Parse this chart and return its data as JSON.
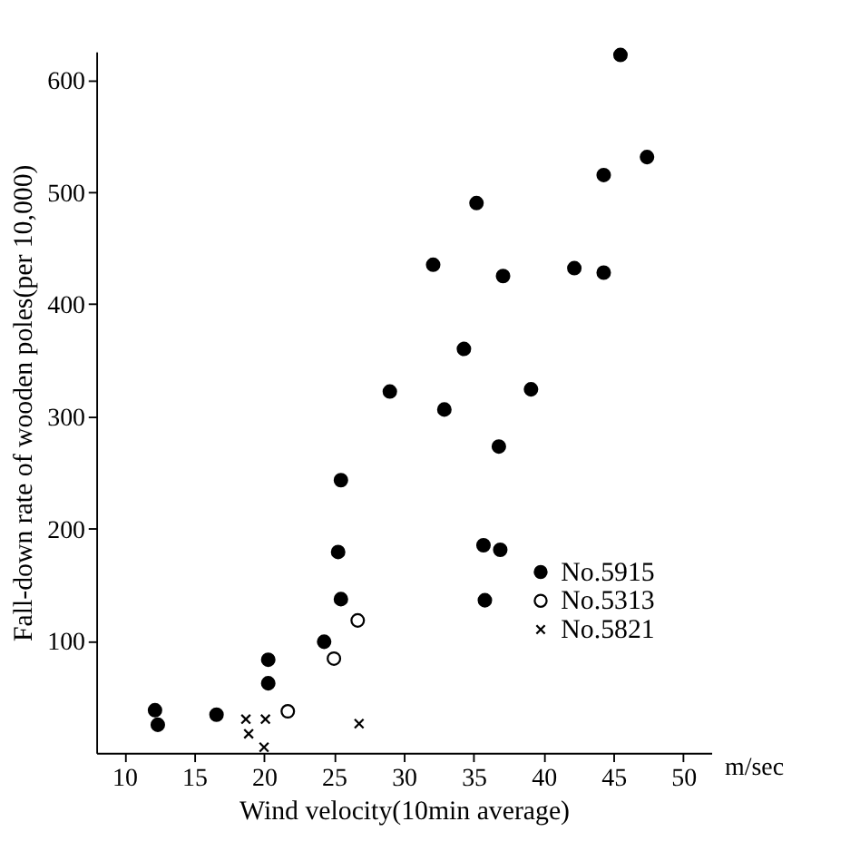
{
  "chart_data": {
    "type": "scatter",
    "xlabel": "Wind velocity(10min average)",
    "ylabel": "Fall-down rate of wooden poles(per 10,000)",
    "annotations": [
      "m/sec"
    ],
    "log": false,
    "grid": false,
    "legend": "bottom right",
    "xlim": [
      8,
      52
    ],
    "xticks": [
      10,
      15,
      20,
      25,
      30,
      35,
      40,
      45,
      50
    ],
    "ylim": [
      0,
      625
    ],
    "yticks": [
      100,
      200,
      300,
      400,
      500,
      600
    ],
    "series": [
      {
        "name": "No.5915",
        "color": "#000000",
        "marker": "circle",
        "x": [
          35.2,
          32.1,
          37.1,
          34.3,
          29,
          32.9,
          39.1,
          45.5,
          47.4,
          44.3,
          42.2,
          44.3,
          36.8,
          25.5,
          35.7,
          36.9,
          25.3,
          35.8,
          25.5,
          24.3,
          20.3,
          20.3,
          12.2,
          12.4,
          16.6
        ],
        "values": [
          490,
          435,
          425,
          360,
          322,
          306,
          324,
          622,
          531,
          515,
          432,
          428,
          273,
          243,
          185,
          181,
          179,
          136,
          137,
          99,
          83,
          62,
          38,
          25,
          34
        ]
      },
      {
        "name": "No.5313",
        "color": "#ffffff",
        "marker": "circle",
        "x": [
          26.7,
          25.0,
          21.7
        ],
        "values": [
          118,
          84,
          37
        ]
      },
      {
        "name": "No.5821",
        "color": "#000000",
        "marker": "cross",
        "x": [
          18.7,
          20.1,
          18.9,
          20.0,
          26.8
        ],
        "values": [
          30,
          30,
          17,
          5,
          26
        ]
      }
    ]
  }
}
